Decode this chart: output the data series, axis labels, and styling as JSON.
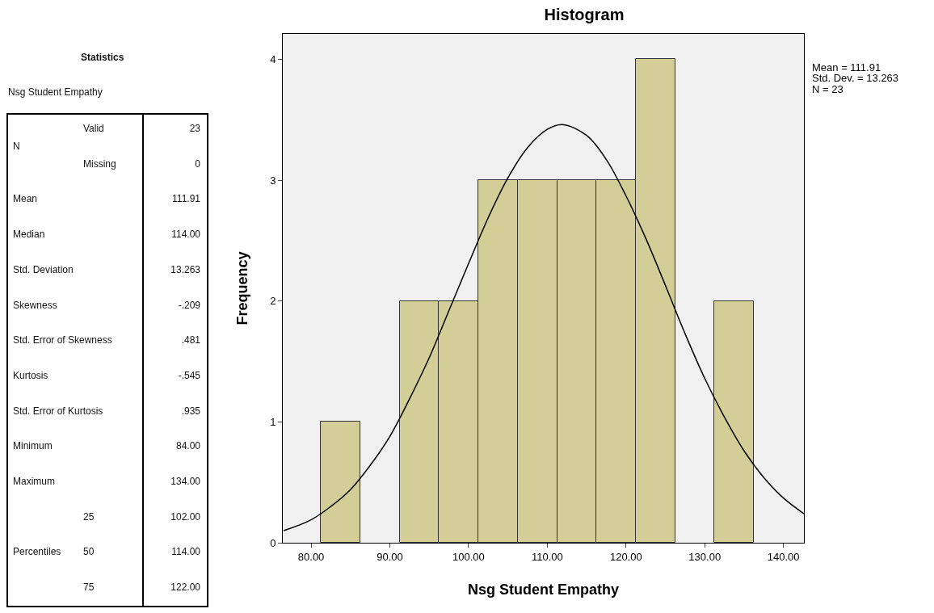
{
  "chart_data": [
    {
      "type": "other",
      "title": "Statistics",
      "subtitle": "Nsg Student Empathy",
      "annotations": [
        "N",
        "Valid",
        "23",
        "Missing",
        "0",
        "Mean",
        "111.91",
        "Median",
        "114.00",
        "Std. Deviation",
        "13.263",
        "Skewness",
        "-.209",
        "Std. Error of Skewness",
        ".481",
        "Kurtosis",
        "-.545",
        "Std. Error of Kurtosis",
        ".935",
        "Minimum",
        "84.00",
        "Maximum",
        "134.00",
        "Percentiles",
        "25",
        "102.00",
        "50",
        "114.00",
        "75",
        "122.00"
      ]
    },
    {
      "type": "histogram",
      "title": "Histogram",
      "xlabel": "Nsg Student Empathy",
      "ylabel": "Frequency",
      "color": "#d3ce97",
      "bins": [
        81.25,
        86.25,
        91.25,
        96.25,
        101.25,
        106.25,
        111.25,
        116.25,
        121.25,
        126.25,
        131.25,
        136.25
      ],
      "values": [
        1,
        0,
        2,
        2,
        3,
        3,
        3,
        3,
        4,
        0,
        2
      ],
      "xlim": [
        76.4,
        142.6
      ],
      "xticks": [
        {
          "value": 80,
          "label": "80.00"
        },
        {
          "value": 90,
          "label": "90.00"
        },
        {
          "value": 100,
          "label": "100.00"
        },
        {
          "value": 110,
          "label": "110.00"
        },
        {
          "value": 120,
          "label": "120.00"
        },
        {
          "value": 130,
          "label": "130.00"
        },
        {
          "value": 140,
          "label": "140.00"
        }
      ],
      "ylim": [
        0,
        4.21
      ],
      "yticks": [
        0,
        1,
        2,
        3,
        4
      ],
      "grid": false,
      "legend": false,
      "annotations": [
        "Mean = 111.91",
        "Std. Dev. = 13.263",
        "N = 23"
      ],
      "series": [
        {
          "type": "line",
          "color": "#000000",
          "x": [
            76.5,
            80,
            82.5,
            85,
            87.5,
            90,
            92.5,
            95,
            97.5,
            100,
            102.5,
            105,
            107.5,
            110,
            111.91,
            115,
            117.5,
            120,
            122.5,
            125,
            127.5,
            130,
            132.5,
            135,
            137.5,
            140,
            142.6
          ],
          "values": [
            0.1,
            0.19,
            0.3,
            0.44,
            0.64,
            0.88,
            1.19,
            1.53,
            1.92,
            2.31,
            2.69,
            3.02,
            3.27,
            3.42,
            3.46,
            3.37,
            3.17,
            2.87,
            2.52,
            2.13,
            1.73,
            1.36,
            1.04,
            0.76,
            0.54,
            0.37,
            0.24
          ]
        }
      ]
    }
  ]
}
